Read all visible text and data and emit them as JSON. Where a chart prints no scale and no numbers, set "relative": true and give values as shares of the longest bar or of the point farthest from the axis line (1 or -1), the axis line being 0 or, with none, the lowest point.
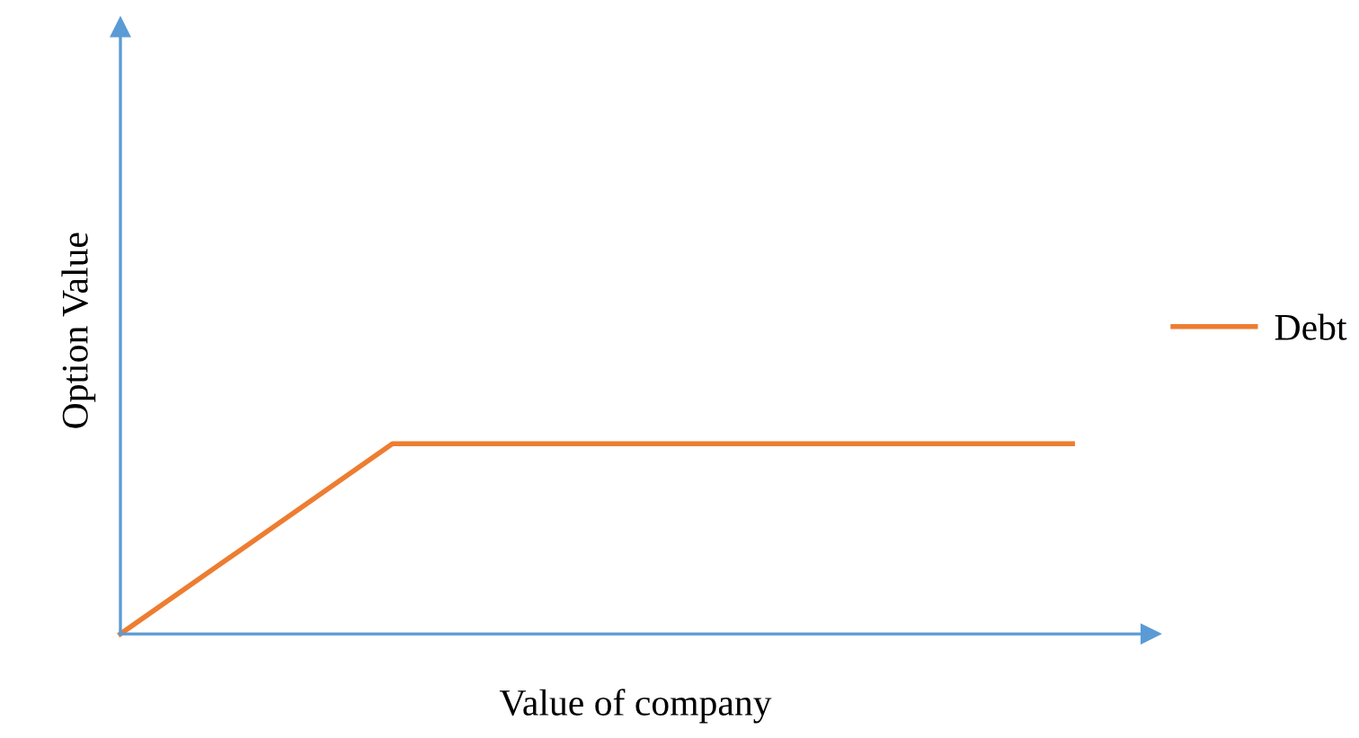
{
  "chart_data": {
    "type": "line",
    "relative": true,
    "xlabel": "Value of company",
    "ylabel": "Option Value",
    "categories": [
      null,
      null,
      null,
      null,
      null,
      null,
      null,
      null
    ],
    "series": [
      {
        "name": "Debt",
        "color": "#ed7d31",
        "values": [
          0,
          0.5,
          1,
          1,
          1,
          1,
          1,
          1
        ]
      }
    ],
    "tick_labels": false,
    "grid": false,
    "legend": "right",
    "marker": "none",
    "line_style": "solid"
  }
}
